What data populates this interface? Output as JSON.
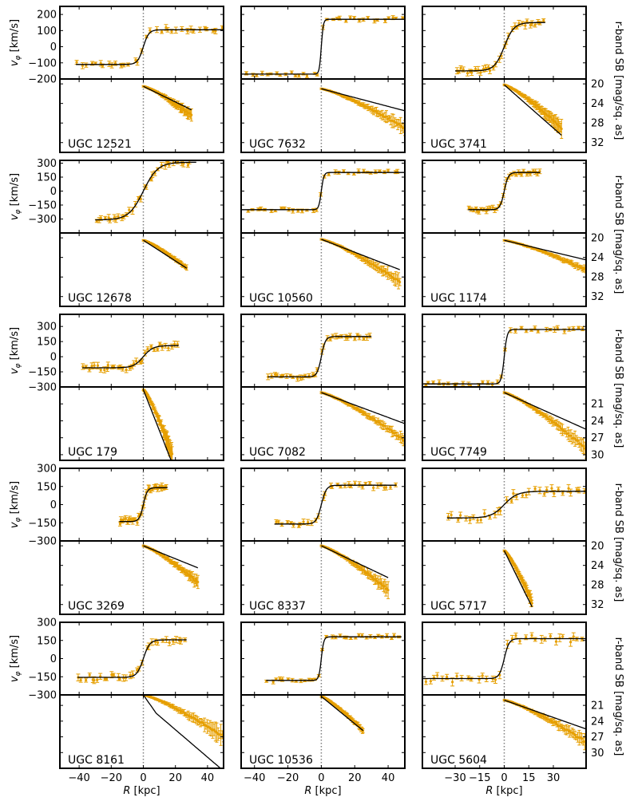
{
  "figure": {
    "x_label": "R [kpc]",
    "x_label_var": "R",
    "x_label_unit": "[kpc]",
    "vel_label": "v_φ [km/s]",
    "vel_label_var": "v",
    "vel_label_sub": "φ",
    "vel_label_unit": "[km/s]",
    "sb_label": "r-band SB [mag/sq. as]",
    "colors": {
      "data": "#e69f00",
      "model": "#000000",
      "center": "#7f7f7f",
      "frame": "#000000"
    }
  },
  "chart_data": [
    {
      "type": "scatter",
      "galaxy": "UGC 12521",
      "row": 0,
      "col": 0,
      "xlim": [
        -52,
        50
      ],
      "x_ticks": [
        -40,
        -20,
        0,
        20,
        40
      ],
      "vel": {
        "ylim": [
          -200,
          250
        ],
        "ticks": [
          -200,
          -100,
          0,
          100,
          200
        ],
        "vmax": 105,
        "vmin": -110,
        "rs": 3.5,
        "xmin": -42,
        "xmax": 50,
        "rmin": -42,
        "rmax": 50,
        "spread": 0.07
      },
      "sb": {
        "ylim": [
          34,
          19
        ],
        "ticks": [
          20,
          24,
          28,
          32
        ],
        "type": "linear",
        "x0": 0,
        "x1": 30,
        "mu0": 20.5,
        "mu1": 25.3,
        "obs_mu1": 26.5,
        "noise": 1.2
      }
    },
    {
      "type": "scatter",
      "galaxy": "UGC 7632",
      "row": 0,
      "col": 1,
      "xlim": [
        -48,
        50
      ],
      "x_ticks": [
        -40,
        -20,
        0,
        20,
        40
      ],
      "vel": {
        "ylim": [
          -200,
          250
        ],
        "ticks": [
          -200,
          -100,
          0,
          100,
          200
        ],
        "vmax": 170,
        "vmin": -170,
        "rs": 1.2,
        "xmin": -48,
        "xmax": 50,
        "rmin": -45,
        "rmax": 50,
        "spread": 0.05
      },
      "sb": {
        "ylim": [
          34,
          19
        ],
        "ticks": [
          20,
          24,
          28,
          32
        ],
        "type": "linear",
        "x0": 0,
        "x1": 50,
        "mu0": 21,
        "mu1": 25.5,
        "obs_mu1": 29,
        "noise": 1.3
      }
    },
    {
      "type": "scatter",
      "galaxy": "UGC 3741",
      "row": 0,
      "col": 2,
      "xlim": [
        -50,
        50
      ],
      "x_ticks": [
        -30,
        -15,
        0,
        15,
        30
      ],
      "vel": {
        "ylim": [
          -200,
          250
        ],
        "ticks": [
          -200,
          -100,
          0,
          100,
          200
        ],
        "vmax": 150,
        "vmin": -150,
        "rs": 6,
        "xmin": -30,
        "xmax": 25,
        "rmin": -30,
        "rmax": 25,
        "spread": 0.08
      },
      "sb": {
        "ylim": [
          34,
          19
        ],
        "ticks": [
          20,
          24,
          28,
          32
        ],
        "type": "linear",
        "x0": 0,
        "x1": 35,
        "mu0": 20.2,
        "mu1": 30.5,
        "obs_mu1": 29,
        "noise": 1.5
      }
    },
    {
      "type": "scatter",
      "galaxy": "UGC 12678",
      "row": 1,
      "col": 0,
      "xlim": [
        -52,
        50
      ],
      "x_ticks": [
        -40,
        -20,
        0,
        20,
        40
      ],
      "vel": {
        "ylim": [
          -450,
          330
        ],
        "ticks": [
          -300,
          -150,
          0,
          150,
          300
        ],
        "vmax": 310,
        "vmin": -310,
        "rs": 9,
        "xmin": -30,
        "xmax": 33,
        "rmin": -30,
        "rmax": 30,
        "spread": 0.08
      },
      "sb": {
        "ylim": [
          34,
          19
        ],
        "ticks": [
          20,
          24,
          28,
          32
        ],
        "type": "linear",
        "x0": 0,
        "x1": 27,
        "mu0": 20.5,
        "mu1": 26.2,
        "obs_mu1": 26.2,
        "noise": 0.3
      }
    },
    {
      "type": "scatter",
      "galaxy": "UGC 10560",
      "row": 1,
      "col": 1,
      "xlim": [
        -48,
        50
      ],
      "x_ticks": [
        -40,
        -20,
        0,
        20,
        40
      ],
      "vel": {
        "ylim": [
          -450,
          330
        ],
        "ticks": [
          -300,
          -150,
          0,
          150,
          300
        ],
        "vmax": 200,
        "vmin": -200,
        "rs": 1.5,
        "xmin": -48,
        "xmax": 50,
        "rmin": -45,
        "rmax": 48,
        "spread": 0.05
      },
      "sb": {
        "ylim": [
          34,
          19
        ],
        "ticks": [
          20,
          24,
          28,
          32
        ],
        "type": "linear",
        "x0": 0,
        "x1": 47,
        "mu0": 20.3,
        "mu1": 26.5,
        "obs_mu1": 29,
        "noise": 1.2
      }
    },
    {
      "type": "scatter",
      "galaxy": "UGC 1174",
      "row": 1,
      "col": 2,
      "xlim": [
        -50,
        50
      ],
      "x_ticks": [
        -30,
        -15,
        0,
        15,
        30
      ],
      "vel": {
        "ylim": [
          -450,
          330
        ],
        "ticks": [
          -300,
          -150,
          0,
          150,
          300
        ],
        "vmax": 200,
        "vmin": -200,
        "rs": 2.5,
        "xmin": -22,
        "xmax": 22,
        "rmin": -22,
        "rmax": 22,
        "spread": 0.06
      },
      "sb": {
        "ylim": [
          34,
          19
        ],
        "ticks": [
          20,
          24,
          28,
          32
        ],
        "type": "linear",
        "x0": 0,
        "x1": 50,
        "mu0": 20.5,
        "mu1": 24.5,
        "obs_mu1": 26.5,
        "noise": 0.5
      }
    },
    {
      "type": "scatter",
      "galaxy": "UGC 179",
      "row": 2,
      "col": 0,
      "xlim": [
        -52,
        50
      ],
      "x_ticks": [
        -40,
        -20,
        0,
        20,
        40
      ],
      "vel": {
        "ylim": [
          -300,
          420
        ],
        "ticks": [
          -300,
          -150,
          0,
          150,
          300
        ],
        "vmax": 110,
        "vmin": -110,
        "rs": 6,
        "xmin": -38,
        "xmax": 22,
        "rmin": -38,
        "rmax": 22,
        "spread": 0.08
      },
      "sb": {
        "ylim": [
          31,
          18
        ],
        "ticks": [
          21,
          24,
          27,
          30
        ],
        "type": "linear",
        "x0": 0,
        "x1": 18,
        "mu0": 18.5,
        "mu1": 31.5,
        "obs_mu1": 30,
        "noise": 1.5
      }
    },
    {
      "type": "scatter",
      "galaxy": "UGC 7082",
      "row": 2,
      "col": 1,
      "xlim": [
        -48,
        50
      ],
      "x_ticks": [
        -40,
        -20,
        0,
        20,
        40
      ],
      "vel": {
        "ylim": [
          -300,
          420
        ],
        "ticks": [
          -300,
          -150,
          0,
          150,
          300
        ],
        "vmax": 200,
        "vmin": -200,
        "rs": 2.5,
        "xmin": -32,
        "xmax": 30,
        "rmin": -32,
        "rmax": 30,
        "spread": 0.07
      },
      "sb": {
        "ylim": [
          31,
          18
        ],
        "ticks": [
          21,
          24,
          27,
          30
        ],
        "type": "linear",
        "x0": 0,
        "x1": 50,
        "mu0": 19,
        "mu1": 24.5,
        "obs_mu1": 27.5,
        "noise": 0.8
      }
    },
    {
      "type": "scatter",
      "galaxy": "UGC 7749",
      "row": 2,
      "col": 2,
      "xlim": [
        -50,
        50
      ],
      "x_ticks": [
        -30,
        -15,
        0,
        15,
        30
      ],
      "vel": {
        "ylim": [
          -300,
          420
        ],
        "ticks": [
          -300,
          -150,
          0,
          150,
          300
        ],
        "vmax": 270,
        "vmin": -270,
        "rs": 1.8,
        "xmin": -50,
        "xmax": 50,
        "rmin": -50,
        "rmax": 50,
        "spread": 0.06
      },
      "sb": {
        "ylim": [
          31,
          18
        ],
        "ticks": [
          21,
          24,
          27,
          30
        ],
        "type": "linear",
        "x0": 0,
        "x1": 50,
        "mu0": 19,
        "mu1": 25.5,
        "obs_mu1": 29,
        "noise": 1.2
      }
    },
    {
      "type": "scatter",
      "galaxy": "UGC 3269",
      "row": 3,
      "col": 0,
      "xlim": [
        -52,
        50
      ],
      "x_ticks": [
        -40,
        -20,
        0,
        20,
        40
      ],
      "vel": {
        "ylim": [
          -300,
          300
        ],
        "ticks": [
          -300,
          -150,
          0,
          150,
          300
        ],
        "vmax": 140,
        "vmin": -140,
        "rs": 2.5,
        "xmin": -15,
        "xmax": 15,
        "rmin": -15,
        "rmax": 15,
        "spread": 0.08
      },
      "sb": {
        "ylim": [
          34,
          19
        ],
        "ticks": [
          20,
          24,
          28,
          32
        ],
        "type": "linear",
        "x0": 0,
        "x1": 34,
        "mu0": 20,
        "mu1": 24.5,
        "obs_mu1": 27.5,
        "noise": 1.0
      }
    },
    {
      "type": "scatter",
      "galaxy": "UGC 8337",
      "row": 3,
      "col": 1,
      "xlim": [
        -48,
        50
      ],
      "x_ticks": [
        -40,
        -20,
        0,
        20,
        40
      ],
      "vel": {
        "ylim": [
          -300,
          300
        ],
        "ticks": [
          -300,
          -150,
          0,
          150,
          300
        ],
        "vmax": 160,
        "vmin": -160,
        "rs": 3,
        "xmin": -28,
        "xmax": 45,
        "rmin": -28,
        "rmax": 45,
        "spread": 0.07
      },
      "sb": {
        "ylim": [
          34,
          19
        ],
        "ticks": [
          20,
          24,
          28,
          32
        ],
        "type": "linear",
        "x0": 0,
        "x1": 40,
        "mu0": 20,
        "mu1": 26.5,
        "obs_mu1": 29,
        "noise": 1.2
      }
    },
    {
      "type": "scatter",
      "galaxy": "UGC 5717",
      "row": 3,
      "col": 2,
      "xlim": [
        -50,
        50
      ],
      "x_ticks": [
        -30,
        -15,
        0,
        15,
        30
      ],
      "vel": {
        "ylim": [
          -300,
          300
        ],
        "ticks": [
          -300,
          -150,
          0,
          150,
          300
        ],
        "vmax": 110,
        "vmin": -110,
        "rs": 8,
        "xmin": -35,
        "xmax": 50,
        "rmin": -35,
        "rmax": 50,
        "spread": 0.09
      },
      "sb": {
        "ylim": [
          34,
          19
        ],
        "ticks": [
          20,
          24,
          28,
          32
        ],
        "type": "linear",
        "x0": 0,
        "x1": 17,
        "mu0": 21,
        "mu1": 32.5,
        "obs_mu1": 31.5,
        "noise": 1.0
      }
    },
    {
      "type": "scatter",
      "galaxy": "UGC 8161",
      "row": 4,
      "col": 0,
      "xlim": [
        -52,
        50
      ],
      "x_ticks": [
        -40,
        -20,
        0,
        20,
        40
      ],
      "vel": {
        "ylim": [
          -300,
          300
        ],
        "ticks": [
          -300,
          -150,
          0,
          150,
          300
        ],
        "vmax": 155,
        "vmin": -155,
        "rs": 4,
        "xmin": -41,
        "xmax": 27,
        "rmin": -41,
        "rmax": 27,
        "spread": 0.08
      },
      "sb": {
        "ylim": [
          33,
          19
        ],
        "ticks": [
          21,
          24,
          27,
          30
        ],
        "type": "broken",
        "x0": 0,
        "xb": 8,
        "x1": 50,
        "mu0": 19,
        "mub": 22.5,
        "mu1": 33.5,
        "obs_mu1": 27,
        "noise": 1.5
      }
    },
    {
      "type": "scatter",
      "galaxy": "UGC 10536",
      "row": 4,
      "col": 1,
      "xlim": [
        -48,
        50
      ],
      "x_ticks": [
        -40,
        -20,
        0,
        20,
        40
      ],
      "vel": {
        "ylim": [
          -300,
          300
        ],
        "ticks": [
          -300,
          -150,
          0,
          150,
          300
        ],
        "vmax": 180,
        "vmin": -180,
        "rs": 1.5,
        "xmin": -33,
        "xmax": 48,
        "rmin": -33,
        "rmax": 48,
        "spread": 0.05
      },
      "sb": {
        "ylim": [
          33,
          19
        ],
        "ticks": [
          21,
          24,
          27,
          30
        ],
        "type": "linear",
        "x0": 0,
        "x1": 25,
        "mu0": 19.3,
        "mu1": 25.8,
        "obs_mu1": 25.8,
        "noise": 0.3
      }
    },
    {
      "type": "scatter",
      "galaxy": "UGC 5604",
      "row": 4,
      "col": 2,
      "xlim": [
        -50,
        50
      ],
      "x_ticks": [
        -30,
        -15,
        0,
        15,
        30
      ],
      "vel": {
        "ylim": [
          -300,
          300
        ],
        "ticks": [
          -300,
          -150,
          0,
          150,
          300
        ],
        "vmax": 165,
        "vmin": -165,
        "rs": 3,
        "xmin": -50,
        "xmax": 50,
        "rmin": -50,
        "rmax": 50,
        "spread": 0.1
      },
      "sb": {
        "ylim": [
          33,
          19
        ],
        "ticks": [
          21,
          24,
          27,
          30
        ],
        "type": "linear",
        "x0": 0,
        "x1": 50,
        "mu0": 20,
        "mu1": 25.5,
        "obs_mu1": 28,
        "noise": 1.2
      }
    }
  ]
}
